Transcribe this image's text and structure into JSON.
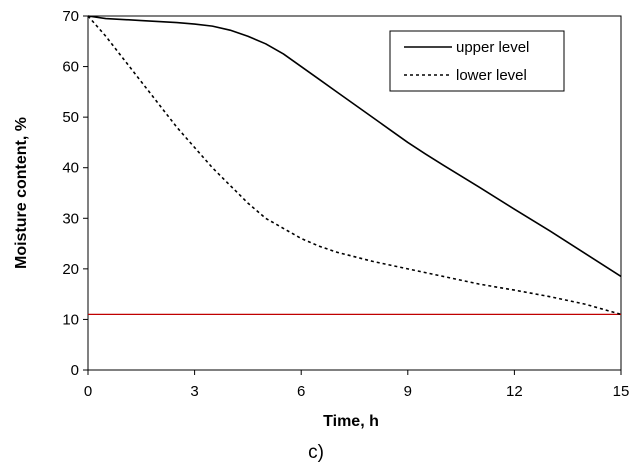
{
  "chart_data": {
    "type": "line",
    "caption": "c)",
    "xlabel": "Time, h",
    "ylabel": "Moisture content, %",
    "xlim": [
      0,
      15
    ],
    "ylim": [
      0,
      70
    ],
    "x_ticks": [
      0,
      3,
      6,
      9,
      12,
      15
    ],
    "y_ticks": [
      0,
      10,
      20,
      30,
      40,
      50,
      60,
      70
    ],
    "grid": false,
    "legend_position": "top-right",
    "series": [
      {
        "name": "upper level",
        "style": "solid",
        "color": "#000000",
        "x": [
          0,
          0.5,
          1,
          1.5,
          2,
          2.5,
          3,
          3.5,
          4,
          4.5,
          5,
          5.5,
          6,
          6.5,
          7,
          7.5,
          8,
          8.5,
          9,
          9.5,
          10,
          11,
          12,
          13,
          14,
          15
        ],
        "y": [
          70,
          69.5,
          69.3,
          69.1,
          68.9,
          68.7,
          68.4,
          68.0,
          67.2,
          66.0,
          64.5,
          62.5,
          60.0,
          57.5,
          55.0,
          52.5,
          50.0,
          47.5,
          45.0,
          42.7,
          40.5,
          36.2,
          31.8,
          27.5,
          23.0,
          18.5
        ]
      },
      {
        "name": "lower level",
        "style": "dashed",
        "color": "#000000",
        "x": [
          0,
          0.5,
          1,
          1.5,
          2,
          2.5,
          3,
          3.5,
          4,
          4.5,
          5,
          5.5,
          6,
          6.5,
          7,
          8,
          9,
          10,
          11,
          12,
          13,
          14,
          15
        ],
        "y": [
          70,
          66,
          61.5,
          57,
          52.5,
          48,
          44,
          40,
          36.5,
          33,
          30,
          28,
          26,
          24.5,
          23.3,
          21.5,
          20,
          18.5,
          17,
          15.8,
          14.5,
          13,
          11
        ]
      }
    ],
    "reference_line": {
      "y": 11,
      "color": "#c00000"
    }
  }
}
